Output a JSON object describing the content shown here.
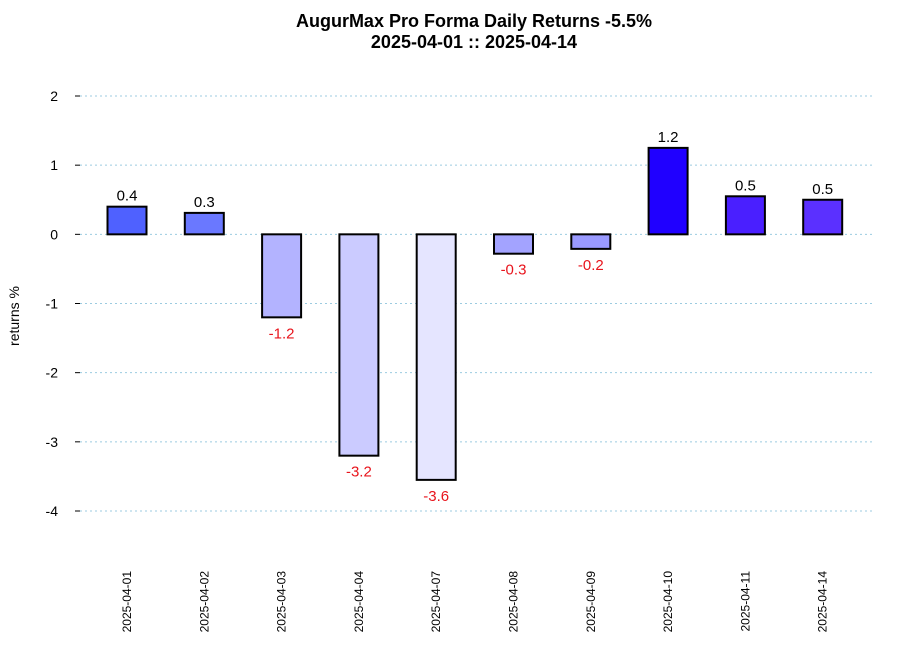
{
  "chart_data": {
    "type": "bar",
    "title": "AugurMax Pro Forma Daily Returns  -5.5%",
    "subtitle": "2025-04-01 :: 2025-04-14",
    "xlabel": "",
    "ylabel": "returns %",
    "ylim": [
      -4,
      2
    ],
    "yticks": [
      2,
      1,
      0,
      -1,
      -2,
      -3,
      -4
    ],
    "grid": true,
    "categories": [
      "2025-04-01",
      "2025-04-02",
      "2025-04-03",
      "2025-04-04",
      "2025-04-07",
      "2025-04-08",
      "2025-04-09",
      "2025-04-10",
      "2025-04-11",
      "2025-04-14"
    ],
    "values": [
      0.4,
      0.31,
      -1.2,
      -3.2,
      -3.55,
      -0.28,
      -0.21,
      1.25,
      0.55,
      0.5
    ],
    "labels": [
      "0.4",
      "0.3",
      "-1.2",
      "-3.2",
      "-3.6",
      "-0.3",
      "-0.2",
      "1.2",
      "0.5",
      "0.5"
    ],
    "colors": [
      "#4f61ff",
      "#6a78ff",
      "#b3b3ff",
      "#cbcbff",
      "#e5e5ff",
      "#a3a3ff",
      "#9a9aff",
      "#2000ff",
      "#4a1fff",
      "#5b30ff"
    ],
    "positive_label_color": "#000000",
    "negative_label_color": "#e8141c"
  }
}
